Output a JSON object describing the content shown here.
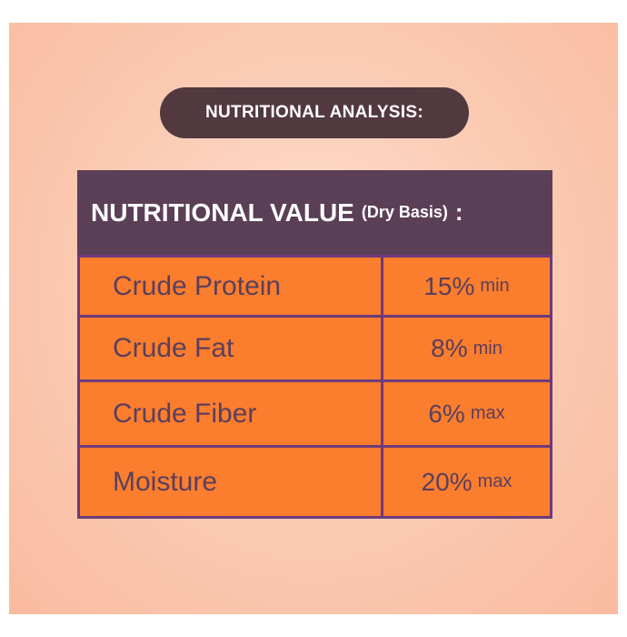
{
  "header": {
    "title": "NUTRITIONAL ANALYSIS:"
  },
  "table": {
    "title": "NUTRITIONAL VALUE",
    "subtitle": "(Dry Basis)",
    "title_suffix": ":",
    "rows": [
      [
        "Crude Protein",
        "15%",
        "min"
      ],
      [
        "Crude Fat",
        "8%",
        "min"
      ],
      [
        "Crude Fiber",
        "6%",
        "max"
      ],
      [
        "Moisture",
        "20%",
        "max"
      ]
    ]
  }
}
